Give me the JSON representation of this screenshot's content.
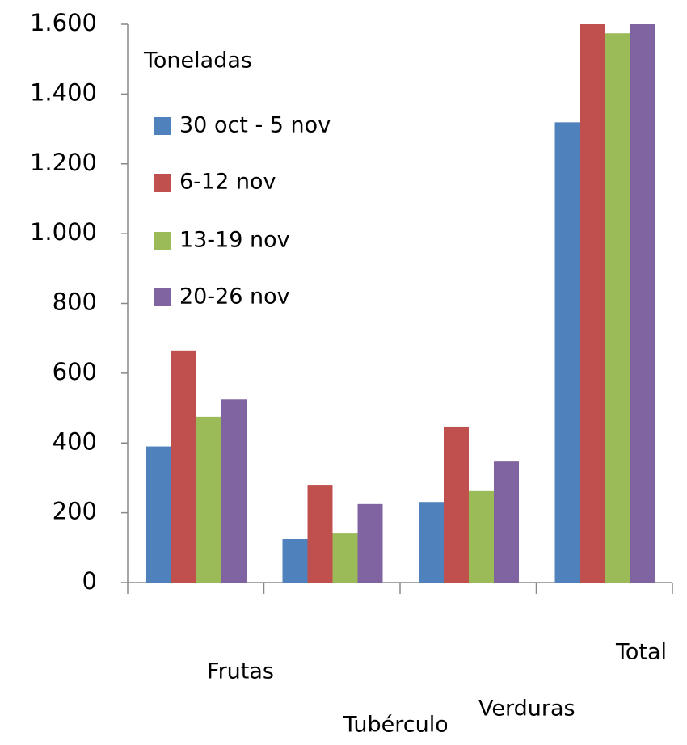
{
  "chart_data": {
    "type": "bar",
    "legend_title": "Toneladas",
    "categories": [
      "Frutas",
      "Tubérculos",
      "Verduras",
      "Total"
    ],
    "series": [
      {
        "name": "30 oct - 5 nov",
        "color": "#4f81bd",
        "values": [
          390,
          125,
          231,
          1319
        ]
      },
      {
        "name": "6-12 nov",
        "color": "#c0504d",
        "values": [
          665,
          280,
          447,
          1600
        ]
      },
      {
        "name": "13-19 nov",
        "color": "#9bbb59",
        "values": [
          475,
          141,
          262,
          1574
        ]
      },
      {
        "name": "20-26 nov",
        "color": "#8064a2",
        "values": [
          525,
          225,
          347,
          1600
        ]
      }
    ],
    "ylim": [
      0,
      1600
    ],
    "yticks": [
      0,
      200,
      400,
      600,
      800,
      {
        "value": 1000,
        "label": "1.000"
      },
      {
        "value": 1200,
        "label": "1.200"
      },
      {
        "value": 1400,
        "label": "1.400"
      },
      {
        "value": 1600,
        "label": "1.600"
      }
    ],
    "grid": false
  }
}
